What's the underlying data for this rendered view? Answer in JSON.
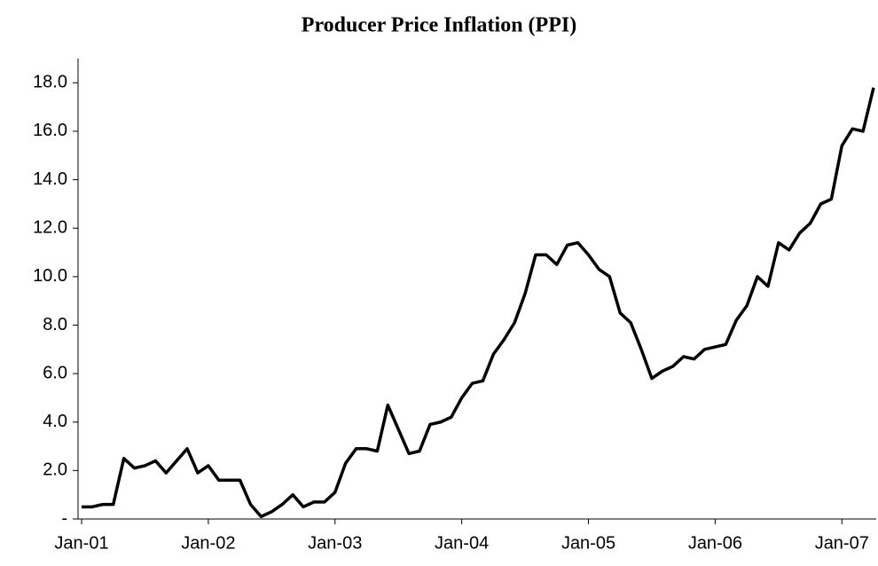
{
  "chart_data": {
    "type": "line",
    "title": "Producer Price Inflation (PPI)",
    "categories": [
      "Jan-01",
      null,
      null,
      null,
      null,
      null,
      null,
      null,
      null,
      null,
      null,
      null,
      "Jan-02",
      null,
      null,
      null,
      null,
      null,
      null,
      null,
      null,
      null,
      null,
      null,
      "Jan-03",
      null,
      null,
      null,
      null,
      null,
      null,
      null,
      null,
      null,
      null,
      null,
      "Jan-04",
      null,
      null,
      null,
      null,
      null,
      null,
      null,
      null,
      null,
      null,
      null,
      "Jan-05",
      null,
      null,
      null,
      null,
      null,
      null,
      null,
      null,
      null,
      null,
      null,
      "Jan-06",
      null,
      null,
      null,
      null,
      null,
      null,
      null,
      null,
      null,
      null,
      null,
      "Jan-07",
      null,
      null,
      null
    ],
    "values": [
      0.5,
      0.5,
      0.6,
      0.6,
      2.5,
      2.1,
      2.2,
      2.4,
      1.9,
      2.4,
      2.9,
      1.9,
      2.2,
      1.6,
      1.6,
      1.6,
      0.6,
      0.1,
      0.3,
      0.6,
      1.0,
      0.5,
      0.7,
      0.7,
      1.1,
      2.3,
      2.9,
      2.9,
      2.8,
      4.7,
      3.7,
      2.7,
      2.8,
      3.9,
      4.0,
      4.2,
      5.0,
      5.6,
      5.7,
      6.8,
      7.4,
      8.1,
      9.3,
      10.9,
      10.9,
      10.5,
      11.3,
      11.4,
      10.9,
      10.3,
      10.0,
      8.5,
      8.1,
      7.0,
      5.8,
      6.1,
      6.3,
      6.7,
      6.6,
      7.0,
      7.1,
      7.2,
      8.2,
      8.8,
      10.0,
      9.6,
      11.4,
      11.1,
      11.8,
      12.2,
      13.0,
      13.2,
      15.4,
      16.1,
      16.0,
      17.8
    ],
    "color": "#000000",
    "ylim": [
      0,
      19
    ],
    "yticks": [
      {
        "value": 0,
        "label": "-"
      },
      {
        "value": 2,
        "label": "2.0"
      },
      {
        "value": 4,
        "label": "4.0"
      },
      {
        "value": 6,
        "label": "6.0"
      },
      {
        "value": 8,
        "label": "8.0"
      },
      {
        "value": 10,
        "label": "10.0"
      },
      {
        "value": 12,
        "label": "12.0"
      },
      {
        "value": 14,
        "label": "14.0"
      },
      {
        "value": 16,
        "label": "16.0"
      },
      {
        "value": 18,
        "label": "18.0"
      }
    ],
    "grid": false
  }
}
